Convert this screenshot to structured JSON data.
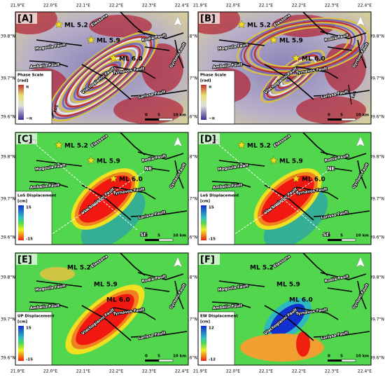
{
  "lon_labels": [
    "21.9°E",
    "22.0°E",
    "22.1°E",
    "22.2°E",
    "22.3°E",
    "22.4°E"
  ],
  "lat_labels": [
    "39.8°N",
    "39.7°N",
    "39.6°N"
  ],
  "events": [
    "ML 5.2",
    "ML 5.9",
    "ML 6.0"
  ],
  "faults": [
    "Elassona",
    "Rodia Fault",
    "Magoula Fault",
    "Ambelia Fault",
    "Vlachogianni Fault",
    "Tyrnavos Fault",
    "Gyrtoni Fault",
    "Larissa Fault"
  ],
  "scale_bar": [
    "0",
    "5",
    "10 km"
  ],
  "panels": [
    {
      "label": "[A]",
      "legend_title": "Phase Scale",
      "legend_unit": "[rad]",
      "legend_max": "π",
      "legend_min": "−π",
      "los_label": "LoS"
    },
    {
      "label": "[B]",
      "legend_title": "Phase Scale",
      "legend_unit": "[rad]",
      "legend_max": "π",
      "legend_min": "−π",
      "los_label": "LoS"
    },
    {
      "label": "[C]",
      "legend_title": "LoS Displacement",
      "legend_unit": "[cm]",
      "legend_max": "15",
      "legend_min": "-15",
      "profile_labels": [
        "NW",
        "NE",
        "SE",
        "SW"
      ]
    },
    {
      "label": "[D]",
      "legend_title": "LoS Displacement",
      "legend_unit": "[cm]",
      "legend_max": "15",
      "legend_min": "-15",
      "profile_labels": [
        "NW",
        "NE",
        "SE",
        "SW"
      ]
    },
    {
      "label": "[E]",
      "legend_title": "UP Displacement",
      "legend_unit": "[cm]",
      "legend_max": "15",
      "legend_min": "-15"
    },
    {
      "label": "[F]",
      "legend_title": "EW Displacement",
      "legend_unit": "[cm]",
      "legend_max": "12",
      "legend_min": "-12"
    }
  ]
}
